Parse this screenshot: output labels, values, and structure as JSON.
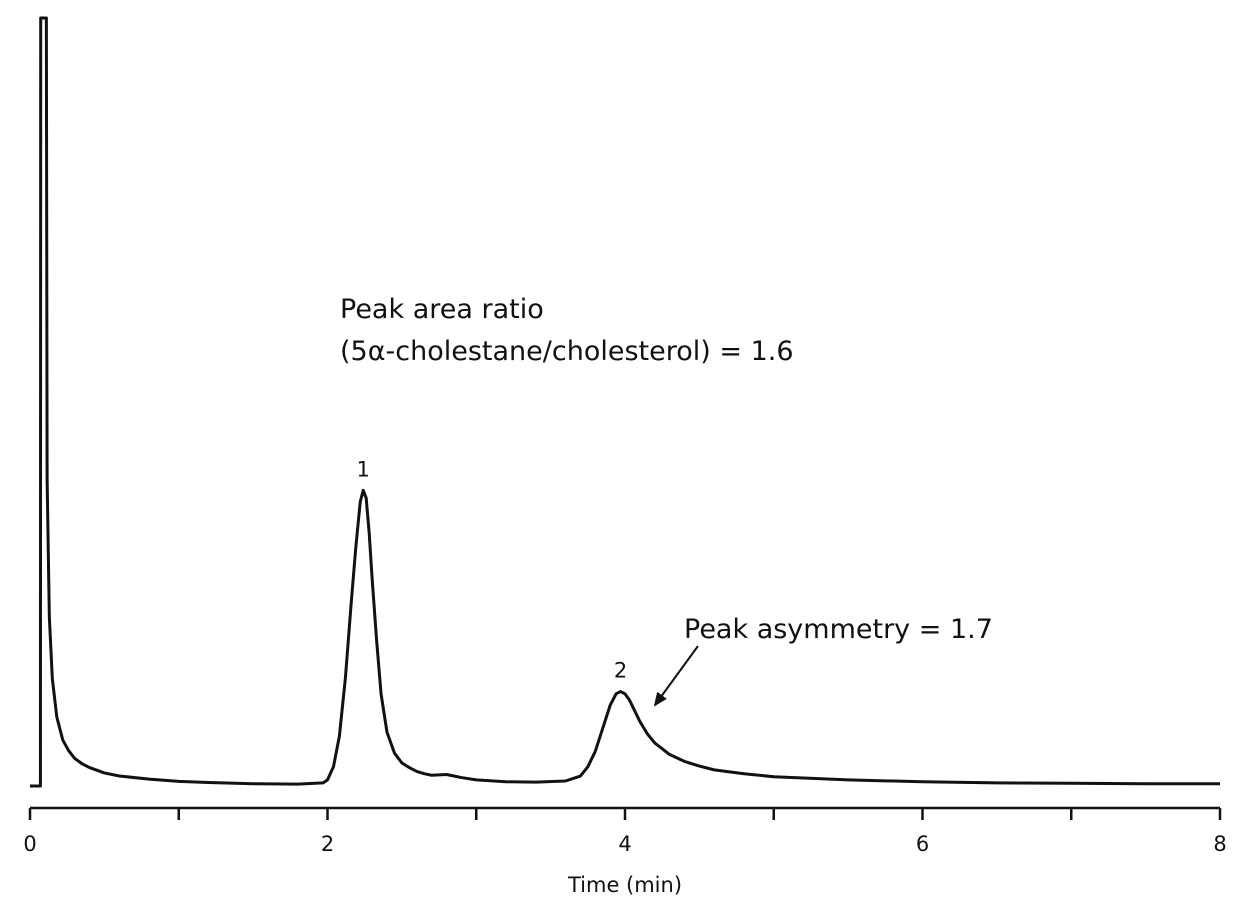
{
  "chart_data": {
    "type": "line",
    "xlabel": "Time (min)",
    "ylabel": "",
    "xlim": [
      0,
      8
    ],
    "x_ticks": [
      0,
      2,
      4,
      6,
      8
    ],
    "x_minor_ticks": [
      1,
      3,
      5,
      7
    ],
    "ylim": [
      0,
      100
    ],
    "grid": false,
    "series": [
      {
        "x": [
          0,
          0.07,
          0.072,
          0.075,
          0.08,
          0.09,
          0.1,
          0.11,
          0.115,
          0.13,
          0.15,
          0.18,
          0.22,
          0.26,
          0.3,
          0.35,
          0.4,
          0.5,
          0.6,
          0.8,
          1.0,
          1.2,
          1.5,
          1.8,
          1.97,
          2.0,
          2.04,
          2.08,
          2.12,
          2.16,
          2.19,
          2.22,
          2.24,
          2.26,
          2.28,
          2.3,
          2.33,
          2.36,
          2.4,
          2.45,
          2.5,
          2.55,
          2.6,
          2.65,
          2.7,
          2.8,
          2.85,
          2.9,
          3.0,
          3.2,
          3.4,
          3.6,
          3.7,
          3.75,
          3.8,
          3.85,
          3.9,
          3.94,
          3.97,
          4.0,
          4.03,
          4.06,
          4.1,
          4.15,
          4.2,
          4.3,
          4.4,
          4.5,
          4.6,
          4.8,
          5.0,
          5.5,
          6.0,
          6.5,
          7.0,
          7.5,
          8.0
        ],
        "y": [
          0,
          0,
          100,
          100,
          100,
          100,
          100,
          100,
          40,
          22,
          14,
          9,
          6,
          4.6,
          3.6,
          2.9,
          2.4,
          1.7,
          1.3,
          0.9,
          0.6,
          0.45,
          0.3,
          0.25,
          0.4,
          0.8,
          2.5,
          6.5,
          14,
          24,
          31,
          37,
          38.5,
          37.5,
          33,
          27,
          19,
          12,
          7,
          4.3,
          3.0,
          2.4,
          1.9,
          1.6,
          1.4,
          1.5,
          1.3,
          1.1,
          0.8,
          0.55,
          0.5,
          0.65,
          1.3,
          2.5,
          4.5,
          7.5,
          10.5,
          12.0,
          12.3,
          12.0,
          11.2,
          10.0,
          8.4,
          6.8,
          5.6,
          4.1,
          3.2,
          2.6,
          2.1,
          1.6,
          1.2,
          0.8,
          0.55,
          0.4,
          0.35,
          0.3,
          0.3
        ]
      }
    ],
    "peak_labels": [
      {
        "text": "1",
        "x": 2.24,
        "y": 38.5
      },
      {
        "text": "2",
        "x": 3.97,
        "y": 12.3
      }
    ],
    "annotations": {
      "area_ratio_line1": "Peak area ratio",
      "area_ratio_line2": "(5α-cholestane/cholesterol) = 1.6",
      "asymmetry": "Peak asymmetry = 1.7"
    }
  }
}
